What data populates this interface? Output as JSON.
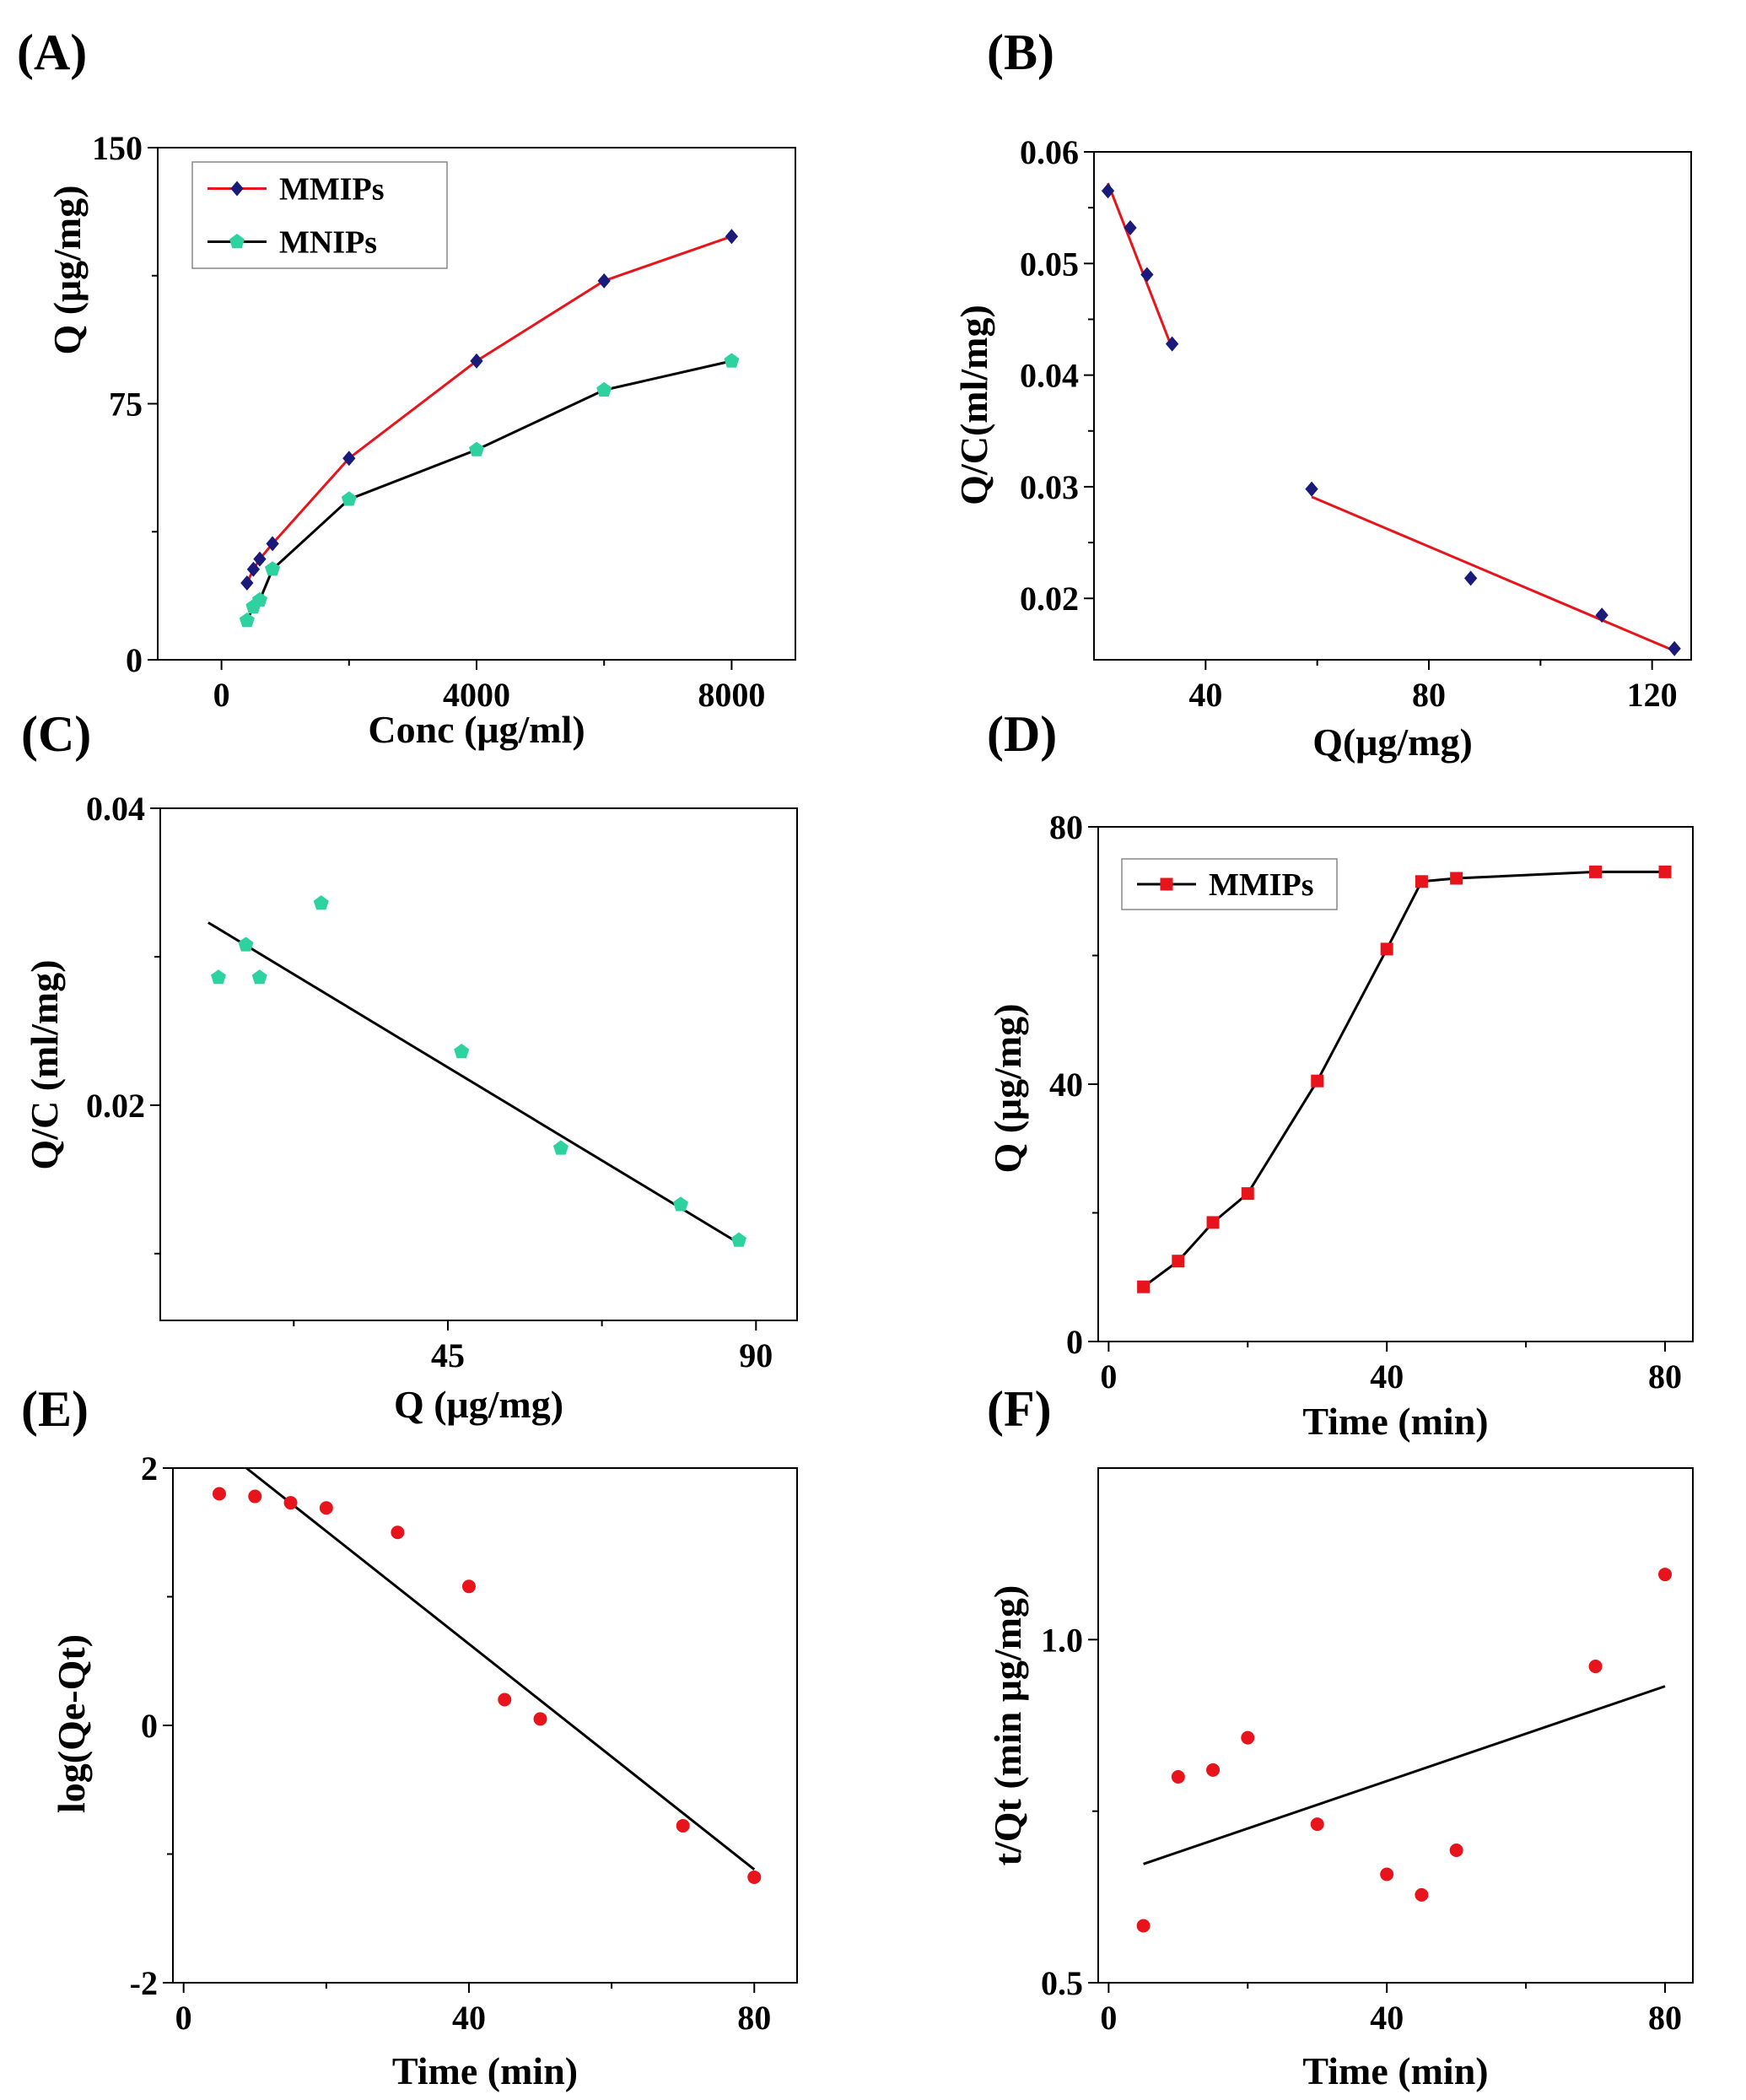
{
  "chart_data": [
    {
      "id": "A",
      "panel_label": "(A)",
      "type": "line",
      "xlabel": "Conc (μg/ml)",
      "ylabel": "Q (μg/mg)",
      "xlim": [
        -1000,
        9000
      ],
      "ylim": [
        0,
        150
      ],
      "xticks": [
        "0",
        "4000",
        "8000"
      ],
      "yticks": [
        "0",
        "75",
        "150"
      ],
      "legend": "top-left",
      "series": [
        {
          "name": "MMIPs",
          "marker": "diamond",
          "marker_color": "#1a1a7a",
          "line_color": "#e8141b",
          "x": [
            400,
            500,
            600,
            800,
            2000,
            4000,
            6000,
            8000
          ],
          "y": [
            22.5,
            26.5,
            29.5,
            34,
            59,
            87.5,
            111,
            124
          ]
        },
        {
          "name": "MNIPs",
          "marker": "pentagon",
          "marker_color": "#2ed1a0",
          "line_color": "#000000",
          "x": [
            400,
            500,
            600,
            800,
            2000,
            4000,
            6000,
            8000
          ],
          "y": [
            11.5,
            15.5,
            17.5,
            26.5,
            47,
            61.5,
            79,
            87.5
          ]
        }
      ]
    },
    {
      "id": "B",
      "panel_label": "(B)",
      "type": "scatter",
      "xlabel": "Q(μg/mg)",
      "ylabel": "Q/C(ml/mg)",
      "xlim": [
        20,
        127
      ],
      "ylim": [
        0.0145,
        0.06
      ],
      "xticks": [
        "40",
        "80",
        "120"
      ],
      "yticks": [
        "0.02",
        "0.03",
        "0.04",
        "0.05",
        "0.06"
      ],
      "points": {
        "x": [
          22.5,
          26.5,
          29.5,
          34,
          59,
          87.5,
          111,
          124
        ],
        "y": [
          0.0565,
          0.0532,
          0.049,
          0.0428,
          0.0298,
          0.0218,
          0.0185,
          0.0155
        ]
      },
      "marker": "diamond",
      "marker_color": "#1a1a7a",
      "fit_lines": [
        {
          "x": [
            22.5,
            34
          ],
          "y": [
            0.0572,
            0.0424
          ],
          "color": "#e8141b"
        },
        {
          "x": [
            59,
            124
          ],
          "y": [
            0.0291,
            0.0153
          ],
          "color": "#e8141b"
        }
      ]
    },
    {
      "id": "C",
      "panel_label": "(C)",
      "type": "scatter",
      "xlabel": "Q (μg/mg)",
      "ylabel": "Q/C (ml/mg)",
      "xlim": [
        3,
        96
      ],
      "ylim": [
        0.0055,
        0.04
      ],
      "xticks": [
        "45",
        "90"
      ],
      "yticks": [
        "0.02",
        "0.04"
      ],
      "points": {
        "x": [
          11.5,
          15.5,
          17.5,
          26.5,
          47,
          61.5,
          79,
          87.5
        ],
        "y": [
          0.0286,
          0.0308,
          0.0286,
          0.0336,
          0.0236,
          0.0171,
          0.0133,
          0.0109
        ]
      },
      "marker": "pentagon",
      "marker_color": "#2ed1a0",
      "fit_lines": [
        {
          "x": [
            10,
            87.5
          ],
          "y": [
            0.0323,
            0.0107
          ],
          "color": "#000000"
        }
      ]
    },
    {
      "id": "D",
      "panel_label": "(D)",
      "type": "line",
      "xlabel": "Time (min)",
      "ylabel": "Q (μg/mg)",
      "xlim": [
        -1.5,
        84
      ],
      "ylim": [
        0,
        80
      ],
      "xticks": [
        "0",
        "40",
        "80"
      ],
      "yticks": [
        "0",
        "40",
        "80"
      ],
      "legend": "top-left",
      "series": [
        {
          "name": "MMIPs",
          "marker": "square",
          "marker_color": "#e8141b",
          "line_color": "#000000",
          "x": [
            5,
            10,
            15,
            20,
            30,
            40,
            45,
            50,
            70,
            80
          ],
          "y": [
            8.5,
            12.5,
            18.5,
            23,
            40.5,
            61,
            71.5,
            72,
            73,
            73
          ]
        }
      ]
    },
    {
      "id": "E",
      "panel_label": "(E)",
      "type": "scatter",
      "xlabel": "Time (min)",
      "ylabel": "log(Qe-Qt)",
      "xlim": [
        -1.5,
        86
      ],
      "ylim": [
        -2,
        2
      ],
      "xticks": [
        "0",
        "40",
        "80"
      ],
      "yticks": [
        "-2",
        "0",
        "2"
      ],
      "points": {
        "x": [
          5,
          10,
          15,
          20,
          30,
          40,
          45,
          50,
          70,
          80
        ],
        "y": [
          1.8,
          1.78,
          1.73,
          1.69,
          1.5,
          1.08,
          0.2,
          0.05,
          -0.78,
          -1.18
        ]
      },
      "marker": "circle",
      "marker_color": "#e8141b",
      "fit_lines": [
        {
          "x": [
            8.8,
            80
          ],
          "y": [
            2.0,
            -1.12
          ],
          "color": "#000000"
        }
      ]
    },
    {
      "id": "F",
      "panel_label": "(F)",
      "type": "scatter",
      "xlabel": "Time (min)",
      "ylabel": "t/Qt (min μg/mg)",
      "xlim": [
        -1.5,
        84
      ],
      "ylim": [
        0.5,
        1.25
      ],
      "xticks": [
        "0",
        "40",
        "80"
      ],
      "yticks": [
        "0.5",
        "1.0"
      ],
      "points": {
        "x": [
          5,
          10,
          15,
          20,
          30,
          40,
          45,
          50,
          70,
          80
        ],
        "y": [
          0.583,
          0.8,
          0.81,
          0.857,
          0.731,
          0.658,
          0.628,
          0.693,
          0.961,
          1.095
        ]
      },
      "marker": "circle",
      "marker_color": "#e8141b",
      "fit_lines": [
        {
          "x": [
            5,
            80
          ],
          "y": [
            0.673,
            0.932
          ],
          "color": "#000000"
        }
      ]
    }
  ]
}
